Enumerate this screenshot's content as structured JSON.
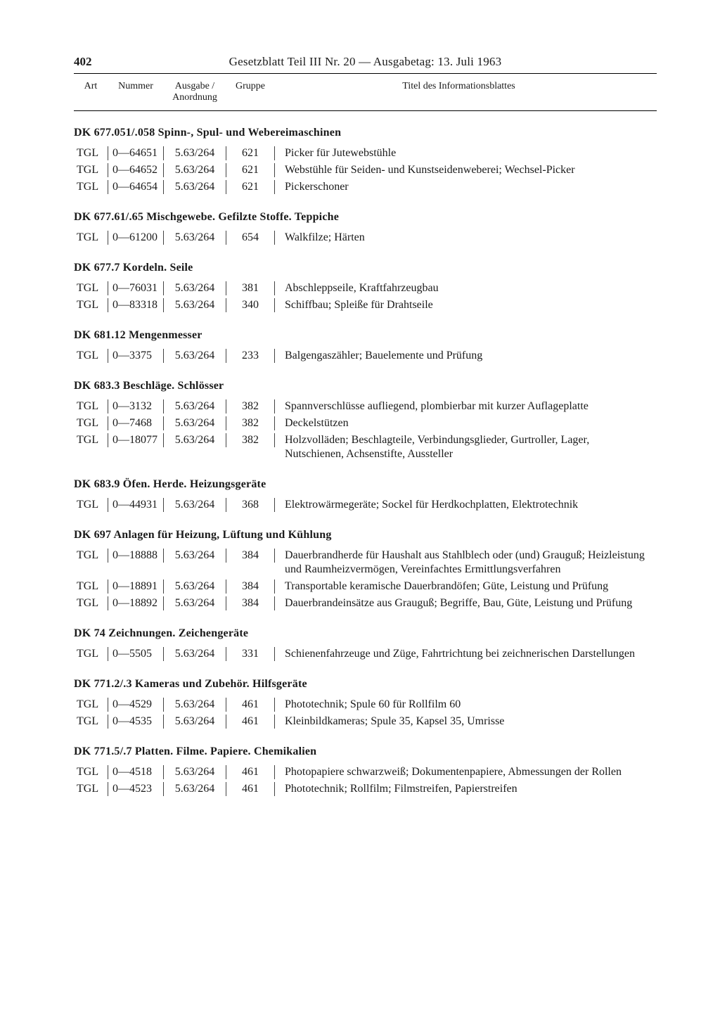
{
  "page_number": "402",
  "header_title": "Gesetzblatt Teil III Nr. 20 — Ausgabetag: 13. Juli 1963",
  "columns": {
    "art": "Art",
    "nummer": "Nummer",
    "ausgabe_line1": "Ausgabe /",
    "ausgabe_line2": "Anordnung",
    "gruppe": "Gruppe",
    "titel": "Titel des Informationsblattes"
  },
  "sections": [
    {
      "title": "DK 677.051/.058 Spinn-, Spul- und Webereimaschinen",
      "rows": [
        {
          "art": "TGL",
          "num": "0—64651",
          "ausg": "5.63/264",
          "grp": "621",
          "titel": "Picker für Jutewebstühle"
        },
        {
          "art": "TGL",
          "num": "0—64652",
          "ausg": "5.63/264",
          "grp": "621",
          "titel": "Webstühle für Seiden- und Kunstseidenweberei; Wechsel-Picker"
        },
        {
          "art": "TGL",
          "num": "0—64654",
          "ausg": "5.63/264",
          "grp": "621",
          "titel": "Pickerschoner"
        }
      ]
    },
    {
      "title": "DK 677.61/.65 Mischgewebe. Gefilzte Stoffe. Teppiche",
      "rows": [
        {
          "art": "TGL",
          "num": "0—61200",
          "ausg": "5.63/264",
          "grp": "654",
          "titel": "Walkfilze; Härten"
        }
      ]
    },
    {
      "title": "DK 677.7 Kordeln. Seile",
      "rows": [
        {
          "art": "TGL",
          "num": "0—76031",
          "ausg": "5.63/264",
          "grp": "381",
          "titel": "Abschleppseile, Kraftfahrzeugbau"
        },
        {
          "art": "TGL",
          "num": "0—83318",
          "ausg": "5.63/264",
          "grp": "340",
          "titel": "Schiffbau; Spleiße für Drahtseile"
        }
      ]
    },
    {
      "title": "DK 681.12 Mengenmesser",
      "rows": [
        {
          "art": "TGL",
          "num": "0—3375",
          "ausg": "5.63/264",
          "grp": "233",
          "titel": "Balgengaszähler; Bauelemente und Prüfung"
        }
      ]
    },
    {
      "title": "DK 683.3 Beschläge. Schlösser",
      "rows": [
        {
          "art": "TGL",
          "num": "0—3132",
          "ausg": "5.63/264",
          "grp": "382",
          "titel": "Spannverschlüsse aufliegend, plombierbar mit kurzer Auflageplatte"
        },
        {
          "art": "TGL",
          "num": "0—7468",
          "ausg": "5.63/264",
          "grp": "382",
          "titel": "Deckelstützen"
        },
        {
          "art": "TGL",
          "num": "0—18077",
          "ausg": "5.63/264",
          "grp": "382",
          "titel": "Holzvolläden; Beschlagteile, Verbindungsglieder, Gurtroller, Lager, Nutschienen, Achsenstifte, Aussteller"
        }
      ]
    },
    {
      "title": "DK 683.9 Öfen. Herde. Heizungsgeräte",
      "rows": [
        {
          "art": "TGL",
          "num": "0—44931",
          "ausg": "5.63/264",
          "grp": "368",
          "titel": "Elektrowärmegeräte; Sockel für Herdkochplatten, Elektrotechnik"
        }
      ]
    },
    {
      "title": "DK 697 Anlagen für Heizung, Lüftung und Kühlung",
      "rows": [
        {
          "art": "TGL",
          "num": "0—18888",
          "ausg": "5.63/264",
          "grp": "384",
          "titel": "Dauerbrandherde für Haushalt aus Stahlblech oder (und) Grauguß; Heizleistung und Raumheizvermögen, Vereinfachtes Ermittlungsverfahren"
        },
        {
          "art": "TGL",
          "num": "0—18891",
          "ausg": "5.63/264",
          "grp": "384",
          "titel": "Transportable keramische Dauerbrandöfen; Güte, Leistung und Prüfung"
        },
        {
          "art": "TGL",
          "num": "0—18892",
          "ausg": "5.63/264",
          "grp": "384",
          "titel": "Dauerbrandeinsätze aus Grauguß; Begriffe, Bau, Güte, Leistung und Prüfung"
        }
      ]
    },
    {
      "title": "DK 74 Zeichnungen. Zeichengeräte",
      "rows": [
        {
          "art": "TGL",
          "num": "0—5505",
          "ausg": "5.63/264",
          "grp": "331",
          "titel": "Schienenfahrzeuge und Züge, Fahrtrichtung bei zeichnerischen Darstellungen"
        }
      ]
    },
    {
      "title": "DK 771.2/.3 Kameras und Zubehör. Hilfsgeräte",
      "rows": [
        {
          "art": "TGL",
          "num": "0—4529",
          "ausg": "5.63/264",
          "grp": "461",
          "titel": "Phototechnik; Spule 60 für Rollfilm 60"
        },
        {
          "art": "TGL",
          "num": "0—4535",
          "ausg": "5.63/264",
          "grp": "461",
          "titel": "Kleinbildkameras; Spule 35, Kapsel 35, Umrisse"
        }
      ]
    },
    {
      "title": "DK 771.5/.7 Platten. Filme. Papiere. Chemikalien",
      "rows": [
        {
          "art": "TGL",
          "num": "0—4518",
          "ausg": "5.63/264",
          "grp": "461",
          "titel": "Photopapiere schwarzweiß; Dokumentenpapiere, Abmessungen der Rollen"
        },
        {
          "art": "TGL",
          "num": "0—4523",
          "ausg": "5.63/264",
          "grp": "461",
          "titel": "Phototechnik; Rollfilm; Filmstreifen, Papierstreifen"
        }
      ]
    }
  ]
}
